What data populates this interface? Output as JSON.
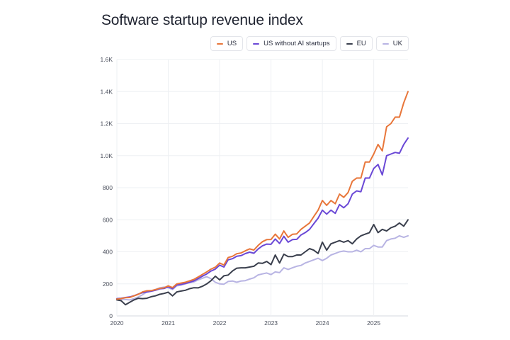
{
  "title": "Software startup revenue index",
  "chart_data": {
    "type": "line",
    "title": "Software startup revenue index",
    "xlabel": "",
    "ylabel": "",
    "x_unit": "months since Jan 2020",
    "xlim": [
      0,
      68
    ],
    "ylim": [
      0,
      1600
    ],
    "grid": true,
    "legend_position": "top-right",
    "x_ticks": [
      {
        "label": "2020",
        "value": 0
      },
      {
        "label": "2021",
        "value": 12
      },
      {
        "label": "2022",
        "value": 24
      },
      {
        "label": "2023",
        "value": 36
      },
      {
        "label": "2024",
        "value": 48
      },
      {
        "label": "2025",
        "value": 60
      }
    ],
    "y_ticks": [
      {
        "label": "0",
        "value": 0
      },
      {
        "label": "200",
        "value": 200
      },
      {
        "label": "400",
        "value": 400
      },
      {
        "label": "600",
        "value": 600
      },
      {
        "label": "800",
        "value": 800
      },
      {
        "label": "1.0K",
        "value": 1000
      },
      {
        "label": "1.2K",
        "value": 1200
      },
      {
        "label": "1.4K",
        "value": 1400
      },
      {
        "label": "1.6K",
        "value": 1600
      }
    ],
    "x": [
      0,
      1,
      2,
      3,
      4,
      5,
      6,
      7,
      8,
      9,
      10,
      11,
      12,
      13,
      14,
      15,
      16,
      17,
      18,
      19,
      20,
      21,
      22,
      23,
      24,
      25,
      26,
      27,
      28,
      29,
      30,
      31,
      32,
      33,
      34,
      35,
      36,
      37,
      38,
      39,
      40,
      41,
      42,
      43,
      44,
      45,
      46,
      47,
      48,
      49,
      50,
      51,
      52,
      53,
      54,
      55,
      56,
      57,
      58,
      59,
      60,
      61,
      62,
      63,
      64,
      65,
      66,
      67,
      68
    ],
    "series": [
      {
        "name": "US",
        "color": "#e8763a",
        "values": [
          105,
          108,
          114,
          115,
          125,
          135,
          150,
          157,
          158,
          164,
          172,
          175,
          188,
          177,
          200,
          205,
          210,
          219,
          228,
          243,
          259,
          275,
          292,
          304,
          330,
          318,
          364,
          372,
          388,
          393,
          406,
          418,
          411,
          440,
          463,
          476,
          477,
          510,
          480,
          530,
          490,
          509,
          512,
          540,
          560,
          580,
          620,
          660,
          720,
          690,
          720,
          700,
          760,
          740,
          770,
          840,
          860,
          860,
          960,
          960,
          1010,
          1070,
          1030,
          1180,
          1200,
          1240,
          1240,
          1330,
          1400
        ]
      },
      {
        "name": "US without AI startups",
        "color": "#6a48d6",
        "values": [
          108,
          110,
          115,
          118,
          126,
          136,
          145,
          149,
          154,
          160,
          169,
          171,
          182,
          170,
          193,
          197,
          203,
          210,
          219,
          233,
          248,
          262,
          280,
          292,
          317,
          305,
          350,
          357,
          372,
          376,
          389,
          398,
          391,
          418,
          437,
          448,
          447,
          480,
          452,
          497,
          460,
          476,
          478,
          505,
          520,
          540,
          575,
          610,
          660,
          635,
          660,
          640,
          695,
          675,
          700,
          760,
          780,
          775,
          860,
          860,
          920,
          945,
          880,
          1000,
          1010,
          1020,
          1015,
          1070,
          1110
        ]
      },
      {
        "name": "EU",
        "color": "#3a3f4d",
        "values": [
          100,
          95,
          70,
          85,
          100,
          110,
          108,
          110,
          120,
          125,
          135,
          140,
          148,
          125,
          150,
          155,
          160,
          170,
          176,
          175,
          185,
          200,
          220,
          248,
          225,
          250,
          255,
          280,
          298,
          300,
          300,
          305,
          310,
          330,
          328,
          340,
          320,
          380,
          330,
          385,
          370,
          370,
          380,
          380,
          400,
          420,
          410,
          390,
          460,
          410,
          450,
          460,
          470,
          460,
          470,
          450,
          480,
          500,
          510,
          520,
          570,
          520,
          540,
          530,
          550,
          560,
          580,
          560,
          600
        ]
      },
      {
        "name": "UK",
        "color": "#b8b4e3",
        "values": [
          104,
          104,
          102,
          100,
          108,
          118,
          132,
          150,
          155,
          165,
          175,
          180,
          176,
          165,
          188,
          192,
          200,
          208,
          212,
          225,
          235,
          245,
          232,
          210,
          200,
          198,
          215,
          218,
          210,
          218,
          220,
          230,
          238,
          256,
          262,
          268,
          258,
          275,
          270,
          300,
          290,
          300,
          310,
          315,
          330,
          340,
          350,
          360,
          345,
          360,
          380,
          390,
          400,
          405,
          400,
          400,
          410,
          400,
          420,
          420,
          440,
          430,
          430,
          470,
          480,
          485,
          500,
          490,
          500
        ]
      }
    ]
  }
}
